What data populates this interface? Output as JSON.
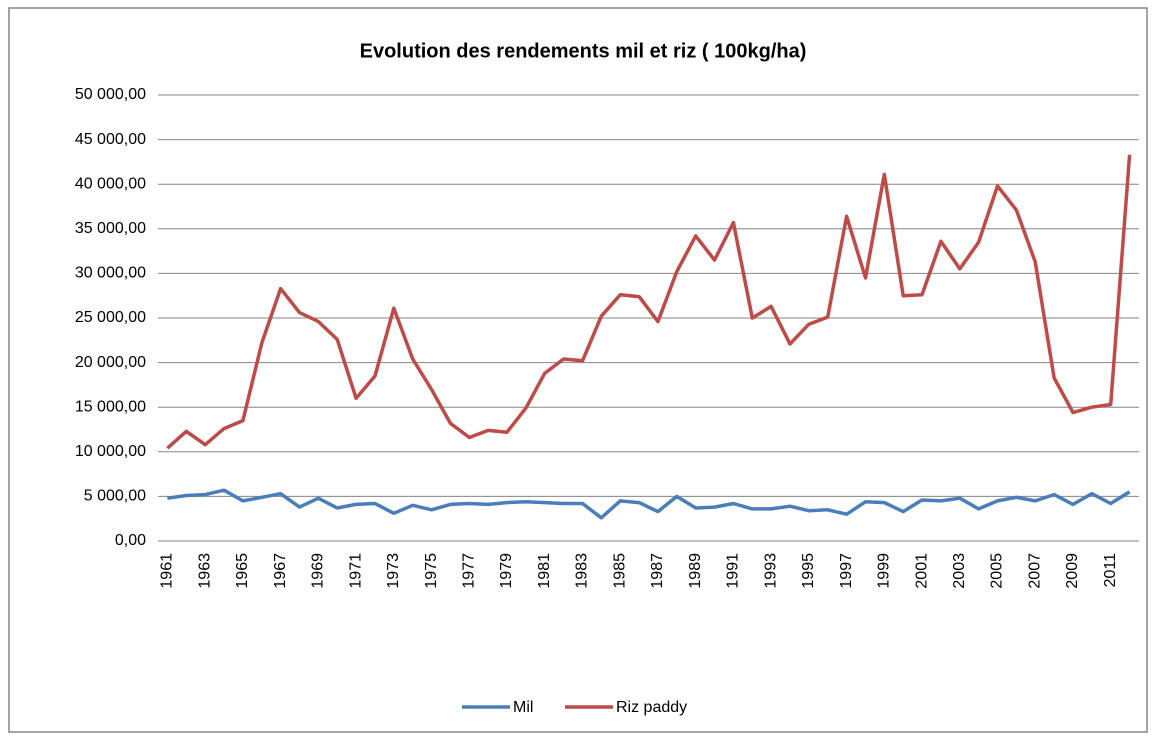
{
  "chart_data": {
    "type": "line",
    "title": "Evolution des rendements mil et riz  ( 100kg/ha)",
    "categories": [
      "1961",
      null,
      "1963",
      null,
      "1965",
      null,
      "1967",
      null,
      "1969",
      null,
      "1971",
      null,
      "1973",
      null,
      "1975",
      null,
      "1977",
      null,
      "1979",
      null,
      "1981",
      null,
      "1983",
      null,
      "1985",
      null,
      "1987",
      null,
      "1989",
      null,
      "1991",
      null,
      "1993",
      null,
      "1995",
      null,
      "1997",
      null,
      "1999",
      null,
      "2001",
      null,
      "2003",
      null,
      "2005",
      null,
      "2007",
      null,
      "2009",
      null,
      "2011",
      null
    ],
    "series": [
      {
        "name": "Mil",
        "color": "#4a7ebb",
        "values": [
          4800,
          5100,
          5200,
          5700,
          4500,
          4900,
          5300,
          3800,
          4800,
          3700,
          4100,
          4200,
          3100,
          4000,
          3500,
          4100,
          4200,
          4100,
          4300,
          4400,
          4300,
          4200,
          4200,
          2600,
          4500,
          4300,
          3300,
          5000,
          3700,
          3800,
          4200,
          3600,
          3600,
          3900,
          3400,
          3500,
          3000,
          4400,
          4300,
          3300,
          4600,
          4500,
          4800,
          3600,
          4500,
          4900,
          4500,
          5200,
          4100,
          5300,
          4200,
          5500
        ]
      },
      {
        "name": "Riz  paddy",
        "color": "#be4b48",
        "values": [
          10400,
          12300,
          10800,
          12600,
          13500,
          22200,
          28300,
          25600,
          24600,
          22600,
          16000,
          18500,
          26100,
          20400,
          17000,
          13200,
          11600,
          12400,
          12200,
          14900,
          18800,
          20400,
          20200,
          25200,
          27600,
          27400,
          24600,
          30200,
          34200,
          31500,
          35700,
          25000,
          26300,
          22100,
          24300,
          25100,
          36400,
          29500,
          41100,
          27500,
          27600,
          33600,
          30500,
          33500,
          39800,
          37100,
          31300,
          18300,
          14400,
          15000,
          15300,
          43300
        ]
      }
    ],
    "ylim": [
      0,
      50000
    ],
    "yticks": [
      {
        "value": 0,
        "label": "0,00"
      },
      {
        "value": 5000,
        "label": "5 000,00"
      },
      {
        "value": 10000,
        "label": "10 000,00"
      },
      {
        "value": 15000,
        "label": "15 000,00"
      },
      {
        "value": 20000,
        "label": "20 000,00"
      },
      {
        "value": 25000,
        "label": "25 000,00"
      },
      {
        "value": 30000,
        "label": "30 000,00"
      },
      {
        "value": 35000,
        "label": "35 000,00"
      },
      {
        "value": 40000,
        "label": "40 000,00"
      },
      {
        "value": 45000,
        "label": "45 000,00"
      },
      {
        "value": 50000,
        "label": "50 000,00"
      }
    ],
    "grid": true,
    "legend": "bottom"
  }
}
